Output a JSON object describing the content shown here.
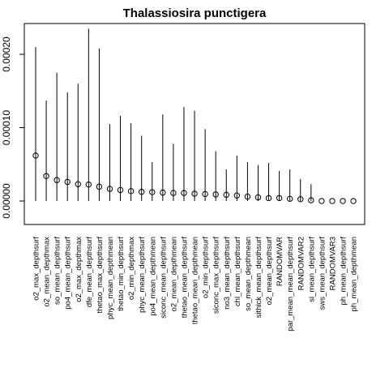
{
  "chart_data": {
    "type": "scatter",
    "title": "Thalassiosira punctigera",
    "xlabel": "",
    "ylabel": "",
    "ylim": [
      -3.2e-05,
      0.000242
    ],
    "yticks": [
      0,
      0.0001,
      0.0002
    ],
    "ytick_labels": [
      "0.00000",
      "0.00010",
      "0.00020"
    ],
    "grid": false,
    "legend": "none",
    "categories": [
      "o2_max_depthsurf",
      "o2_mean_depthmax",
      "so_mean_depthsurf",
      "po4_mean_depthsurf",
      "o2_max_depthmax",
      "dfe_mean_depthsurf",
      "thetao_max_depthsurf",
      "phyc_mean_depthmean",
      "thetao_min_depthsurf",
      "o2_min_depthmax",
      "phyc_mean_depthsurf",
      "po4_mean_depthmean",
      "siconc_mean_depthsurf",
      "o2_mean_depthmean",
      "thetao_mean_depthsurf",
      "thetao_mean_depthmean",
      "o2_min_depthsurf",
      "siconc_max_depthsurf",
      "no3_mean_depthsurf",
      "chl_mean_depthsurf",
      "so_mean_depthmean",
      "sithick_mean_depthsurf",
      "o2_mean_depthsurf",
      "RANDOMVAR",
      "par_mean_mean_depthsurf",
      "RANDOMVAR2",
      "si_mean_depthsurf",
      "sws_mean_depthsurf",
      "RANDOMVAR3",
      "ph_mean_depthsurf",
      "ph_mean_depthmean"
    ],
    "values": [
      6.2e-05,
      3.4e-05,
      2.85e-05,
      2.6e-05,
      2.3e-05,
      2.25e-05,
      1.95e-05,
      1.65e-05,
      1.5e-05,
      1.35e-05,
      1.25e-05,
      1.2e-05,
      1.15e-05,
      1.1e-05,
      1.1e-05,
      1e-05,
      9.5e-06,
      9e-06,
      8.5e-06,
      7.5e-06,
      6e-06,
      5e-06,
      4e-06,
      4e-06,
      3e-06,
      2.5e-06,
      1e-06,
      0.0,
      0.0,
      0.0,
      0.0
    ],
    "upper": [
      0.00021,
      0.000137,
      0.000175,
      0.000148,
      0.00016,
      0.000235,
      0.000208,
      0.000105,
      0.000116,
      0.000106,
      8.9e-05,
      5.3e-05,
      0.000118,
      7.8e-05,
      0.000128,
      0.000123,
      9.8e-05,
      6.8e-05,
      4.3e-05,
      6.2e-05,
      5.3e-05,
      4.9e-05,
      5.2e-05,
      4.1e-05,
      4.3e-05,
      3e-05,
      2.3e-05,
      0.0,
      0.0,
      0.0,
      0.0
    ],
    "lower": [
      0,
      0,
      0,
      0,
      0,
      0,
      0,
      0,
      0,
      0,
      0,
      0,
      0,
      0,
      0,
      0,
      0,
      0,
      0,
      0,
      0,
      0,
      0,
      0,
      0,
      0,
      0,
      0,
      0,
      0,
      0
    ]
  }
}
